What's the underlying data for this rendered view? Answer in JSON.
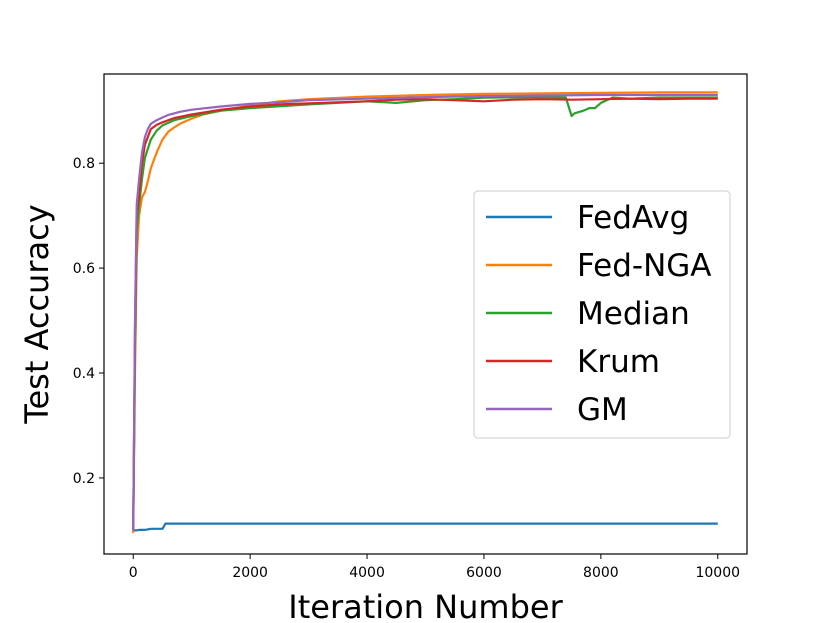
{
  "chart_data": {
    "type": "line",
    "title": "",
    "xlabel": "Iteration Number",
    "ylabel": "Test Accuracy",
    "xlim": [
      -500,
      10500
    ],
    "ylim": [
      0.055,
      0.97
    ],
    "xticks": [
      0,
      2000,
      4000,
      6000,
      8000,
      10000
    ],
    "xtick_labels": [
      "0",
      "2000",
      "4000",
      "6000",
      "8000",
      "10000"
    ],
    "yticks": [
      0.2,
      0.4,
      0.6,
      0.8
    ],
    "ytick_labels": [
      "0.2",
      "0.4",
      "0.6",
      "0.8"
    ],
    "grid": false,
    "legend_position": "center-right",
    "series": [
      {
        "name": "FedAvg",
        "color": "#1f77b4",
        "x": [
          0,
          50,
          100,
          200,
          300,
          400,
          500,
          550,
          600,
          1000,
          2000,
          4000,
          6000,
          8000,
          10000
        ],
        "y": [
          0.1,
          0.1,
          0.101,
          0.101,
          0.103,
          0.103,
          0.103,
          0.113,
          0.113,
          0.113,
          0.113,
          0.113,
          0.113,
          0.113,
          0.113
        ]
      },
      {
        "name": "Fed-NGA",
        "color": "#ff7f0e",
        "x": [
          0,
          30,
          60,
          100,
          150,
          200,
          250,
          300,
          400,
          500,
          600,
          700,
          800,
          1000,
          1200,
          1500,
          2000,
          2500,
          3000,
          4000,
          5000,
          6000,
          7000,
          8000,
          9000,
          10000
        ],
        "y": [
          0.095,
          0.4,
          0.62,
          0.7,
          0.735,
          0.745,
          0.765,
          0.79,
          0.82,
          0.845,
          0.86,
          0.868,
          0.875,
          0.885,
          0.893,
          0.9,
          0.91,
          0.918,
          0.922,
          0.927,
          0.93,
          0.932,
          0.933,
          0.934,
          0.935,
          0.935
        ]
      },
      {
        "name": "Median",
        "color": "#2ca02c",
        "x": [
          0,
          30,
          60,
          100,
          150,
          200,
          300,
          400,
          500,
          700,
          1000,
          1500,
          2000,
          3000,
          4000,
          4500,
          5000,
          5500,
          6000,
          7000,
          7400,
          7500,
          7550,
          7700,
          7800,
          7900,
          8000,
          8200,
          8500,
          9000,
          10000
        ],
        "y": [
          0.1,
          0.45,
          0.67,
          0.72,
          0.77,
          0.81,
          0.845,
          0.862,
          0.872,
          0.882,
          0.89,
          0.9,
          0.905,
          0.912,
          0.918,
          0.915,
          0.92,
          0.922,
          0.925,
          0.926,
          0.925,
          0.89,
          0.895,
          0.9,
          0.905,
          0.905,
          0.915,
          0.925,
          0.923,
          0.925,
          0.925
        ]
      },
      {
        "name": "Krum",
        "color": "#d62728",
        "x": [
          0,
          30,
          60,
          100,
          150,
          200,
          300,
          400,
          500,
          700,
          1000,
          1500,
          2000,
          2500,
          3000,
          3500,
          4000,
          4500,
          5000,
          5500,
          6000,
          6500,
          7000,
          7500,
          8000,
          8500,
          9000,
          9500,
          10000
        ],
        "y": [
          0.1,
          0.48,
          0.7,
          0.74,
          0.8,
          0.835,
          0.865,
          0.873,
          0.878,
          0.886,
          0.893,
          0.902,
          0.908,
          0.912,
          0.914,
          0.916,
          0.918,
          0.921,
          0.922,
          0.92,
          0.918,
          0.921,
          0.922,
          0.921,
          0.922,
          0.923,
          0.922,
          0.923,
          0.923
        ]
      },
      {
        "name": "GM",
        "color": "#9467bd",
        "x": [
          0,
          30,
          60,
          100,
          150,
          200,
          250,
          300,
          400,
          500,
          600,
          800,
          1000,
          1500,
          2000,
          2500,
          3000,
          4000,
          5000,
          6000,
          7000,
          8000,
          9000,
          10000
        ],
        "y": [
          0.1,
          0.5,
          0.72,
          0.77,
          0.82,
          0.85,
          0.865,
          0.875,
          0.882,
          0.887,
          0.892,
          0.898,
          0.902,
          0.908,
          0.913,
          0.916,
          0.92,
          0.923,
          0.926,
          0.928,
          0.929,
          0.93,
          0.93,
          0.93
        ]
      }
    ]
  }
}
